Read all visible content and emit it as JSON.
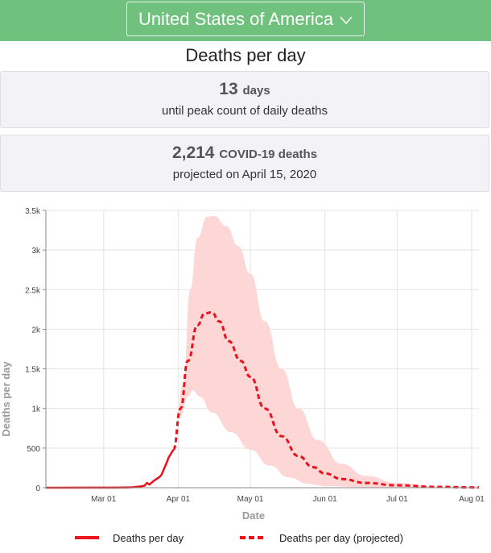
{
  "header": {
    "country": "United States of America",
    "chevron": "chevron-down-icon"
  },
  "page_title": "Deaths per day",
  "cards": [
    {
      "value": "13",
      "unit": "days",
      "caption": "until peak count of daily deaths"
    },
    {
      "value": "2,214",
      "unit": "COVID-19 deaths",
      "caption": "projected on April 15, 2020"
    }
  ],
  "colors": {
    "header": "#6fc17d",
    "line": "#e8131b",
    "band": "#fdd6d6"
  },
  "chart_data": {
    "type": "line",
    "xlabel": "Date",
    "ylabel": "Deaths per day",
    "x_unit": "day of year 2020",
    "xlim": [
      37,
      217
    ],
    "ylim": [
      0,
      3500
    ],
    "x_ticks": [
      {
        "v": 61,
        "label": "Mar 01"
      },
      {
        "v": 92,
        "label": "Apr 01"
      },
      {
        "v": 122,
        "label": "May 01"
      },
      {
        "v": 153,
        "label": "Jun 01"
      },
      {
        "v": 183,
        "label": "Jul 01"
      },
      {
        "v": 214,
        "label": "Aug 01"
      }
    ],
    "y_ticks": [
      {
        "v": 0,
        "label": "0"
      },
      {
        "v": 500,
        "label": "500"
      },
      {
        "v": 1000,
        "label": "1k"
      },
      {
        "v": 1500,
        "label": "1.5k"
      },
      {
        "v": 2000,
        "label": "2k"
      },
      {
        "v": 2500,
        "label": "2.5k"
      },
      {
        "v": 3000,
        "label": "3k"
      },
      {
        "v": 3500,
        "label": "3.5k"
      }
    ],
    "grid": true,
    "legend": {
      "position": "bottom",
      "items": [
        "Deaths per day",
        "Deaths per day (projected)"
      ]
    },
    "series": [
      {
        "name": "Deaths per day",
        "style": "solid",
        "points": [
          [
            37,
            0
          ],
          [
            65,
            1
          ],
          [
            70,
            3
          ],
          [
            73,
            5
          ],
          [
            76,
            15
          ],
          [
            78,
            25
          ],
          [
            79,
            60
          ],
          [
            80,
            40
          ],
          [
            82,
            90
          ],
          [
            84,
            130
          ],
          [
            85,
            160
          ],
          [
            86,
            230
          ],
          [
            87,
            300
          ],
          [
            88,
            380
          ],
          [
            89,
            430
          ],
          [
            90,
            480
          ]
        ]
      },
      {
        "name": "Deaths per day (projected)",
        "style": "dashed",
        "points": [
          [
            90,
            480
          ],
          [
            93,
            1000
          ],
          [
            96,
            1600
          ],
          [
            100,
            2050
          ],
          [
            103,
            2200
          ],
          [
            106,
            2214
          ],
          [
            109,
            2100
          ],
          [
            113,
            1850
          ],
          [
            118,
            1600
          ],
          [
            122,
            1400
          ],
          [
            128,
            1000
          ],
          [
            135,
            650
          ],
          [
            142,
            400
          ],
          [
            148,
            260
          ],
          [
            153,
            180
          ],
          [
            160,
            110
          ],
          [
            170,
            60
          ],
          [
            183,
            30
          ],
          [
            200,
            10
          ],
          [
            217,
            3
          ]
        ]
      }
    ],
    "band": {
      "name": "Uncertainty interval",
      "upper": [
        [
          90,
          480
        ],
        [
          94,
          1300
        ],
        [
          97,
          2500
        ],
        [
          100,
          3150
        ],
        [
          104,
          3420
        ],
        [
          107,
          3430
        ],
        [
          112,
          3300
        ],
        [
          117,
          3050
        ],
        [
          122,
          2700
        ],
        [
          128,
          2100
        ],
        [
          135,
          1500
        ],
        [
          142,
          1000
        ],
        [
          150,
          600
        ],
        [
          160,
          300
        ],
        [
          170,
          150
        ],
        [
          183,
          60
        ],
        [
          200,
          15
        ],
        [
          217,
          5
        ]
      ],
      "lower": [
        [
          90,
          480
        ],
        [
          93,
          900
        ],
        [
          96,
          1150
        ],
        [
          98,
          1230
        ],
        [
          101,
          1150
        ],
        [
          106,
          950
        ],
        [
          114,
          700
        ],
        [
          122,
          480
        ],
        [
          130,
          280
        ],
        [
          138,
          130
        ],
        [
          146,
          50
        ],
        [
          153,
          20
        ],
        [
          170,
          5
        ],
        [
          217,
          0
        ]
      ]
    }
  }
}
